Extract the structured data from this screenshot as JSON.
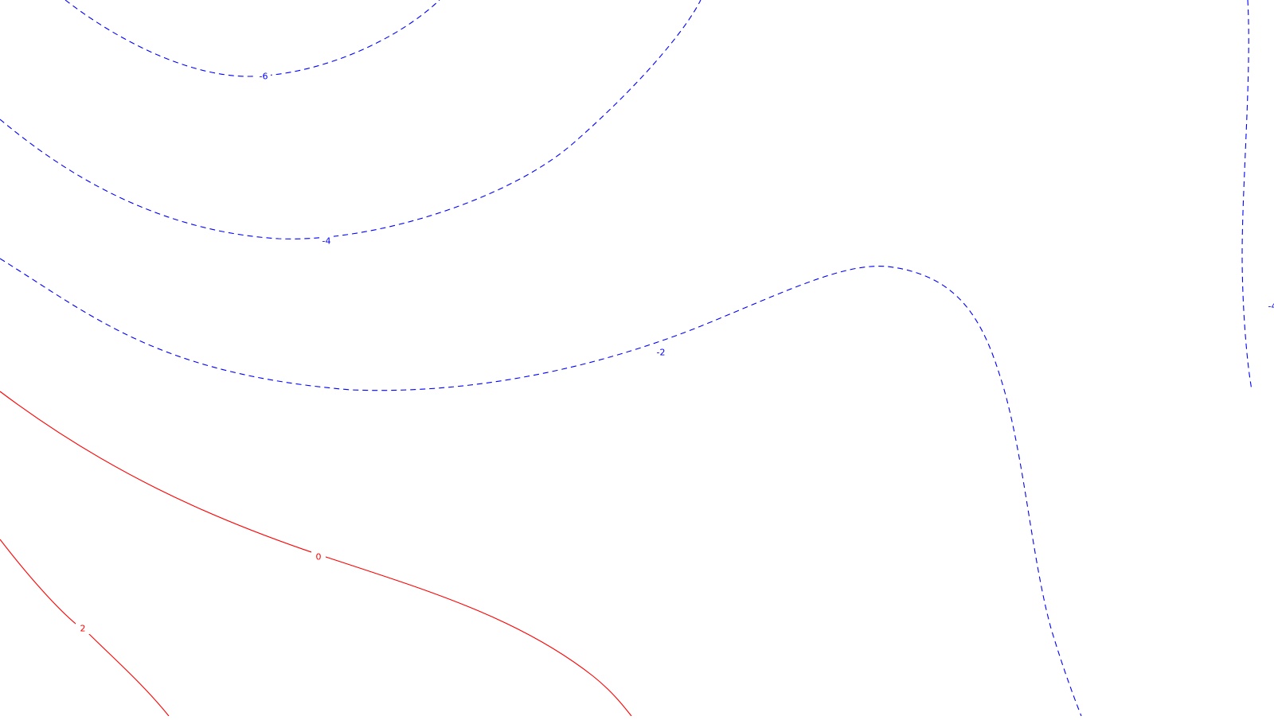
{
  "chart_data": {
    "type": "contour",
    "negative_style": "dashed",
    "positive_style": "solid",
    "colors": {
      "negative": "#0000ff",
      "zero_and_positive": "#ff0000",
      "background": "#ffffff"
    },
    "contours": [
      {
        "id": "c-neg6",
        "level": -6,
        "label": "-6",
        "sign": "negative"
      },
      {
        "id": "c-neg4-a",
        "level": -4,
        "label": "-4",
        "sign": "negative"
      },
      {
        "id": "c-neg2",
        "level": -2,
        "label": "-2",
        "sign": "negative"
      },
      {
        "id": "c-neg4-b",
        "level": -4,
        "label": "-4",
        "sign": "negative"
      },
      {
        "id": "c-zero",
        "level": 0,
        "label": "0",
        "sign": "zero"
      },
      {
        "id": "c-pos2",
        "level": 2,
        "label": "2",
        "sign": "positive"
      }
    ]
  }
}
